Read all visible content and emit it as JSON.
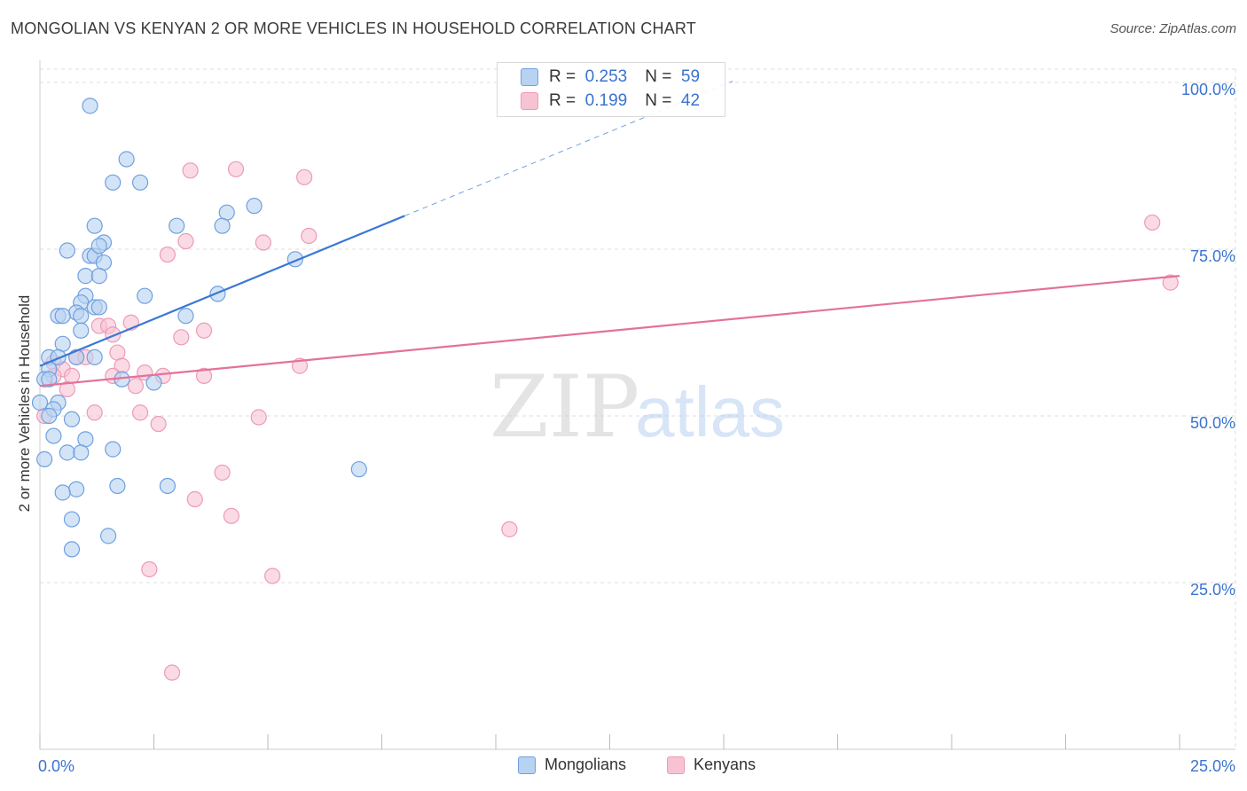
{
  "title": "MONGOLIAN VS KENYAN 2 OR MORE VEHICLES IN HOUSEHOLD CORRELATION CHART",
  "source": "Source: ZipAtlas.com",
  "watermark": {
    "zip": "ZIP",
    "atlas": "atlas"
  },
  "colors": {
    "mongolians_fill": "#b8d2f2",
    "mongolians_stroke": "#6fa0e0",
    "mongolians_line": "#3a78d4",
    "kenyans_fill": "#f7c3d3",
    "kenyans_stroke": "#ee9ab5",
    "kenyans_line": "#e4719a",
    "axis_label": "#3a73d0",
    "grid": "#dddddd"
  },
  "legend_top": {
    "rows": [
      {
        "r_label": "R =",
        "r_value": "0.253",
        "n_label": "N =",
        "n_value": "59"
      },
      {
        "r_label": "R =",
        "r_value": "0.199",
        "n_label": "N =",
        "n_value": "42"
      }
    ]
  },
  "legend_bottom": [
    "Mongolians",
    "Kenyans"
  ],
  "chart_data": {
    "type": "scatter",
    "title": "MONGOLIAN VS KENYAN 2 OR MORE VEHICLES IN HOUSEHOLD CORRELATION CHART",
    "xlabel": "",
    "ylabel": "2 or more Vehicles in Household",
    "xlim": [
      0,
      25
    ],
    "ylim": [
      0,
      102
    ],
    "x_tick_labels": [
      "0.0%",
      "25.0%"
    ],
    "y_ticks": [
      25,
      50,
      75,
      100
    ],
    "y_tick_labels": [
      "25.0%",
      "50.0%",
      "75.0%",
      "100.0%"
    ],
    "series": [
      {
        "name": "Mongolians",
        "r": 0.253,
        "n": 59,
        "trend": {
          "x0": 0,
          "y0": 57.5,
          "x1": 8.0,
          "y1": 80.0,
          "dash_to_x": 15.2,
          "dash_to_y": 100.2
        },
        "points": [
          [
            1.1,
            96.5
          ],
          [
            1.9,
            88.5
          ],
          [
            1.6,
            85.0
          ],
          [
            2.2,
            85.0
          ],
          [
            4.1,
            80.5
          ],
          [
            4.7,
            81.5
          ],
          [
            3.0,
            78.5
          ],
          [
            4.0,
            78.5
          ],
          [
            1.2,
            78.5
          ],
          [
            1.4,
            76.0
          ],
          [
            0.6,
            74.8
          ],
          [
            1.1,
            74.0
          ],
          [
            1.2,
            74.0
          ],
          [
            1.3,
            75.5
          ],
          [
            1.4,
            73.0
          ],
          [
            5.6,
            73.5
          ],
          [
            1.0,
            71.0
          ],
          [
            1.3,
            71.0
          ],
          [
            2.3,
            68.0
          ],
          [
            3.9,
            68.3
          ],
          [
            1.0,
            68.0
          ],
          [
            0.9,
            67.0
          ],
          [
            1.2,
            66.3
          ],
          [
            1.3,
            66.3
          ],
          [
            0.8,
            65.5
          ],
          [
            0.4,
            65.0
          ],
          [
            0.5,
            65.0
          ],
          [
            0.9,
            65.0
          ],
          [
            3.2,
            65.0
          ],
          [
            0.9,
            62.8
          ],
          [
            0.5,
            60.8
          ],
          [
            0.2,
            58.8
          ],
          [
            0.4,
            58.8
          ],
          [
            0.8,
            58.8
          ],
          [
            1.2,
            58.8
          ],
          [
            0.2,
            57.0
          ],
          [
            0.1,
            55.5
          ],
          [
            0.2,
            55.5
          ],
          [
            1.8,
            55.5
          ],
          [
            2.5,
            55.0
          ],
          [
            0.4,
            52.0
          ],
          [
            0.3,
            51.0
          ],
          [
            0.7,
            49.5
          ],
          [
            0.3,
            47.0
          ],
          [
            1.0,
            46.5
          ],
          [
            1.6,
            45.0
          ],
          [
            0.6,
            44.5
          ],
          [
            0.9,
            44.5
          ],
          [
            0.1,
            43.5
          ],
          [
            7.0,
            42.0
          ],
          [
            1.7,
            39.5
          ],
          [
            2.8,
            39.5
          ],
          [
            0.8,
            39.0
          ],
          [
            0.5,
            38.5
          ],
          [
            0.7,
            34.5
          ],
          [
            1.5,
            32.0
          ],
          [
            0.7,
            30.0
          ],
          [
            0.0,
            52.0
          ],
          [
            0.2,
            50.0
          ]
        ]
      },
      {
        "name": "Kenyans",
        "r": 0.199,
        "n": 42,
        "trend": {
          "x0": 0,
          "y0": 54.5,
          "x1": 25,
          "y1": 71.0
        },
        "points": [
          [
            4.3,
            87.0
          ],
          [
            3.3,
            86.8
          ],
          [
            5.8,
            85.8
          ],
          [
            24.4,
            79.0
          ],
          [
            5.9,
            77.0
          ],
          [
            3.2,
            76.2
          ],
          [
            4.9,
            76.0
          ],
          [
            2.8,
            74.2
          ],
          [
            24.8,
            70.0
          ],
          [
            2.0,
            64.0
          ],
          [
            1.3,
            63.5
          ],
          [
            1.5,
            63.5
          ],
          [
            1.6,
            62.2
          ],
          [
            3.6,
            62.8
          ],
          [
            3.1,
            61.8
          ],
          [
            1.7,
            59.5
          ],
          [
            0.8,
            58.8
          ],
          [
            1.0,
            58.8
          ],
          [
            0.3,
            58.0
          ],
          [
            1.8,
            57.5
          ],
          [
            5.7,
            57.5
          ],
          [
            0.5,
            57.0
          ],
          [
            2.3,
            56.5
          ],
          [
            1.6,
            56.0
          ],
          [
            2.7,
            56.0
          ],
          [
            3.6,
            56.0
          ],
          [
            0.3,
            56.0
          ],
          [
            0.7,
            56.0
          ],
          [
            2.1,
            54.5
          ],
          [
            0.6,
            54.0
          ],
          [
            1.2,
            50.5
          ],
          [
            2.2,
            50.5
          ],
          [
            2.6,
            48.8
          ],
          [
            4.8,
            49.8
          ],
          [
            0.1,
            50.0
          ],
          [
            4.0,
            41.5
          ],
          [
            3.4,
            37.5
          ],
          [
            4.2,
            35.0
          ],
          [
            10.3,
            33.0
          ],
          [
            2.4,
            27.0
          ],
          [
            5.1,
            26.0
          ],
          [
            2.9,
            11.5
          ]
        ]
      }
    ]
  }
}
